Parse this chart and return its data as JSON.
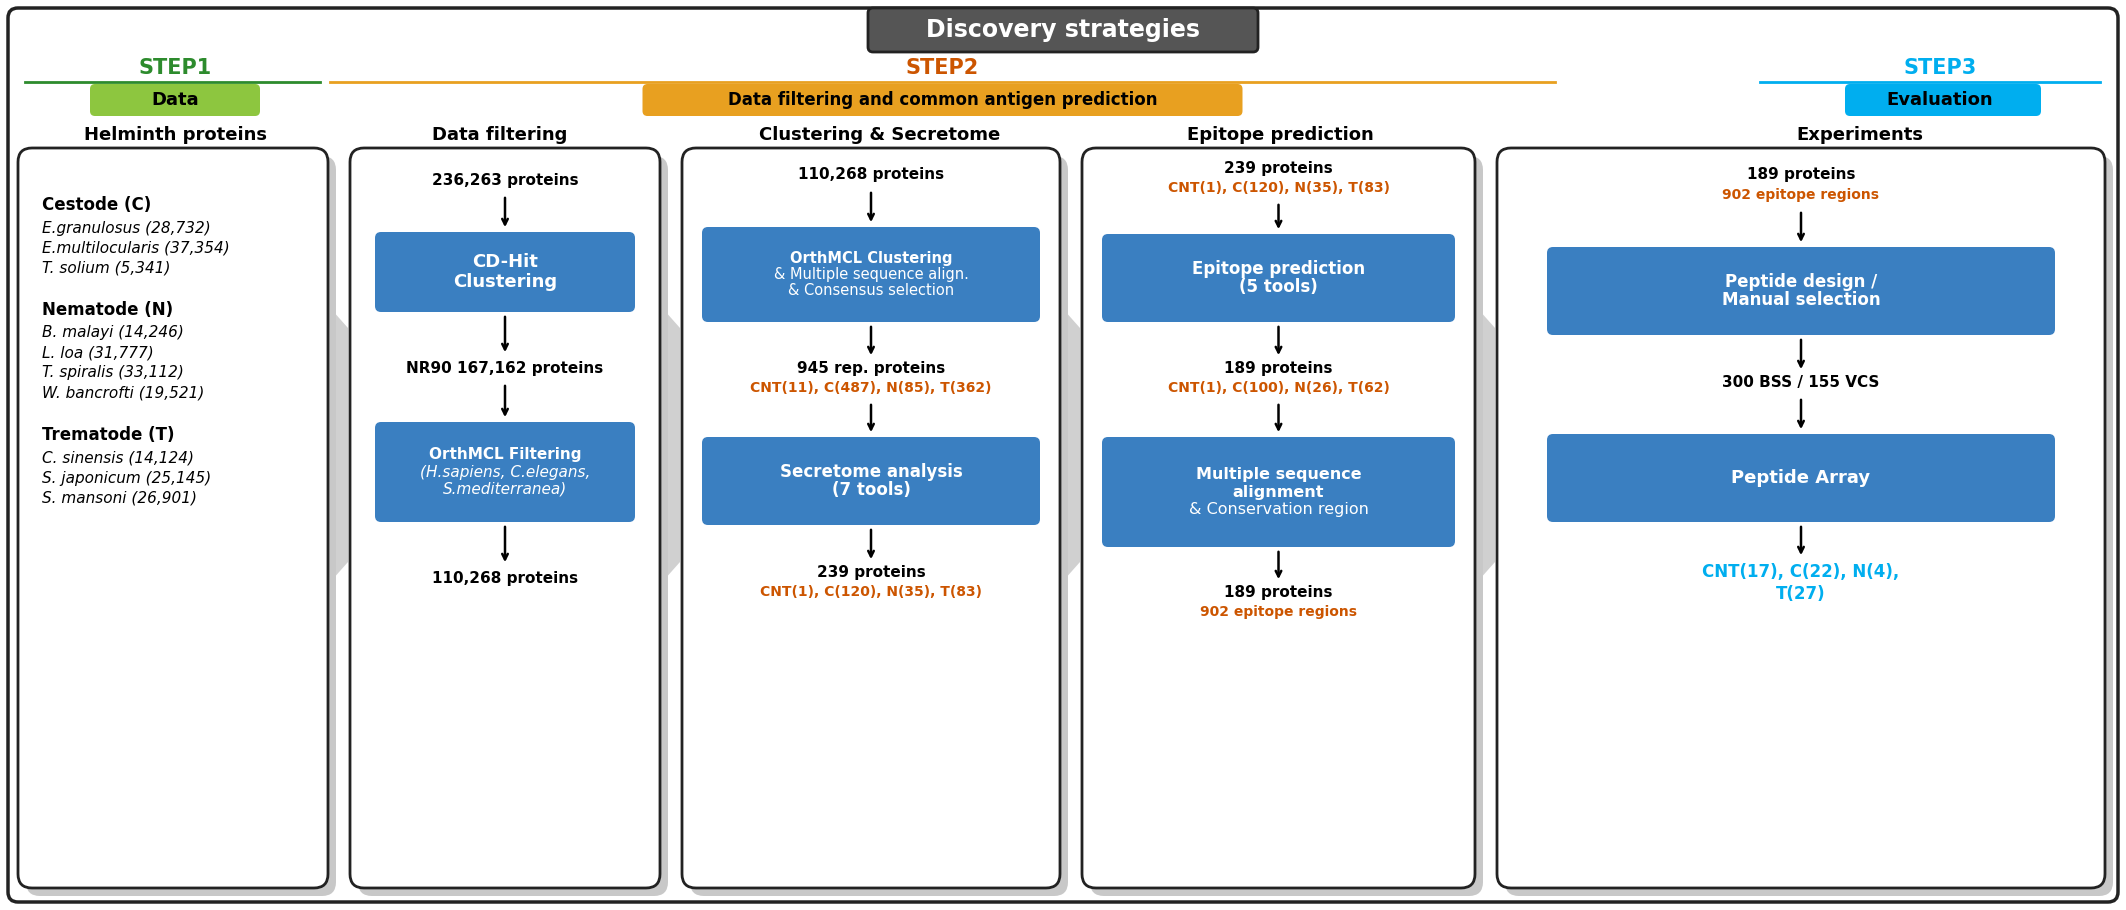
{
  "title": "Discovery strategies",
  "step1_label": "STEP1",
  "step1_color": "#2d8b2d",
  "step1_box": "Data",
  "step1_box_color": "#8dc63f",
  "step2_label": "STEP2",
  "step2_color": "#e87722",
  "step2_box": "Data filtering and common antigen prediction",
  "step2_box_color": "#e87722",
  "step3_label": "STEP3",
  "step3_color": "#00aeef",
  "step3_box": "Evaluation",
  "step3_box_color": "#00aeef",
  "col1_header": "Helminth proteins",
  "col2_header": "Data filtering",
  "col3_header": "Clustering & Secretome",
  "col4_header": "Epitope prediction",
  "col5_header": "Experiments",
  "blue_color": "#3a7fc1",
  "orange_color": "#cc5500",
  "dark_color": "#222222",
  "bg_color": "#ffffff"
}
